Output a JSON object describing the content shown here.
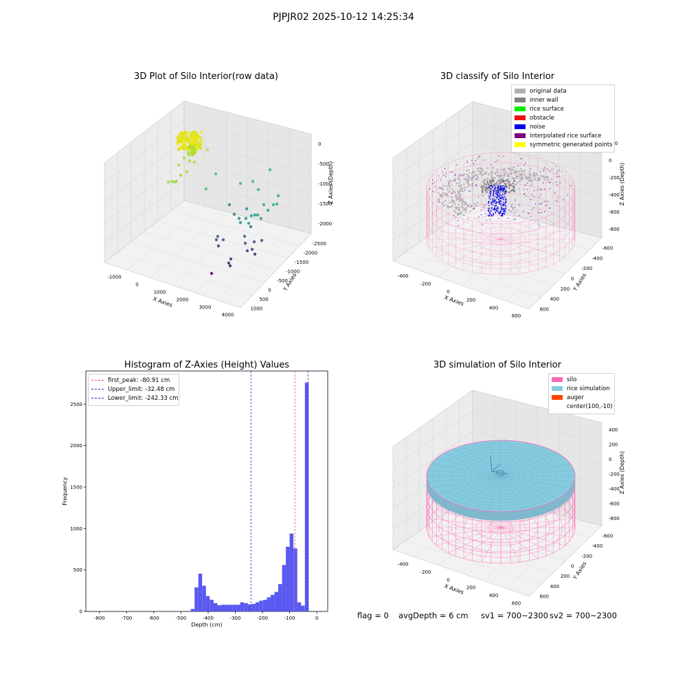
{
  "figure_title": "PJPJR02 2025-10-12 14:25:34",
  "colors": {
    "hist_bar": "#5050f0",
    "first_peak_line": "#e05060",
    "limit_line": "#2030c0",
    "silo_wire": "#ff69b4",
    "rice_sim": "#87cbe0",
    "auger": "#ff4500",
    "original": "#b0b0b0",
    "inner_wall": "#808080",
    "rice_surface": "#00ee00",
    "obstacle": "#ee1010",
    "noise": "#0000ee",
    "interp": "#800080",
    "sym": "#ffff00"
  },
  "chart_data": [
    {
      "type": "scatter",
      "title": "3D Plot of Silo Interior(row data)",
      "xlabel": "X Axies",
      "ylabel": "Y Axies",
      "zlabel": "Z Axies (Depth)",
      "x_ticks": [
        "-1000",
        "0",
        "1000",
        "2000",
        "3000",
        "4000"
      ],
      "y_ticks": [
        "1000",
        "500",
        "0",
        "-500",
        "-1000",
        "-1500",
        "-2000",
        "-2500"
      ],
      "z_ticks": [
        "0",
        "-500",
        "-1000",
        "-1500",
        "-2000"
      ]
    },
    {
      "type": "scatter",
      "title": "3D classify of Silo Interior",
      "xlabel": "X Axies",
      "ylabel": "Y Axies",
      "zlabel": "Z Axies (Depth)",
      "x_ticks": [
        "-400",
        "-200",
        "0",
        "200",
        "400",
        "600"
      ],
      "y_ticks": [
        "600",
        "400",
        "200",
        "0",
        "-200",
        "-400",
        "-600"
      ],
      "z_ticks": [
        "200",
        "0",
        "-200",
        "-400",
        "-600",
        "-800"
      ],
      "legend": [
        "original data",
        "inner wall",
        "rice surface",
        "obstacle",
        "noise",
        "interpolated rice surface",
        "symmetric generated points"
      ]
    },
    {
      "type": "bar",
      "title": "Histogram of Z-Axies (Height) Values",
      "xlabel": "Depth (cm)",
      "ylabel": "Frequency",
      "xlim": [
        -850,
        40
      ],
      "ylim": [
        0,
        2900
      ],
      "x_ticks": [
        -800,
        -700,
        -600,
        -500,
        -400,
        -300,
        -200,
        -100,
        0
      ],
      "y_ticks": [
        0,
        500,
        1000,
        1500,
        2000,
        2500
      ],
      "bin_width": 14,
      "bins": [
        {
          "x": -464,
          "y": 30
        },
        {
          "x": -450,
          "y": 290
        },
        {
          "x": -436,
          "y": 455
        },
        {
          "x": -422,
          "y": 310
        },
        {
          "x": -408,
          "y": 185
        },
        {
          "x": -394,
          "y": 140
        },
        {
          "x": -380,
          "y": 100
        },
        {
          "x": -366,
          "y": 75
        },
        {
          "x": -352,
          "y": 80
        },
        {
          "x": -338,
          "y": 80
        },
        {
          "x": -324,
          "y": 80
        },
        {
          "x": -310,
          "y": 80
        },
        {
          "x": -296,
          "y": 80
        },
        {
          "x": -282,
          "y": 110
        },
        {
          "x": -268,
          "y": 100
        },
        {
          "x": -254,
          "y": 85
        },
        {
          "x": -240,
          "y": 90
        },
        {
          "x": -226,
          "y": 110
        },
        {
          "x": -212,
          "y": 130
        },
        {
          "x": -198,
          "y": 140
        },
        {
          "x": -184,
          "y": 170
        },
        {
          "x": -170,
          "y": 200
        },
        {
          "x": -156,
          "y": 235
        },
        {
          "x": -142,
          "y": 330
        },
        {
          "x": -128,
          "y": 560
        },
        {
          "x": -114,
          "y": 780
        },
        {
          "x": -100,
          "y": 940
        },
        {
          "x": -86,
          "y": 760
        },
        {
          "x": -72,
          "y": 110
        },
        {
          "x": -58,
          "y": 70
        },
        {
          "x": -44,
          "y": 2760
        }
      ],
      "lines": [
        {
          "label": "first_peak: -80.91 cm",
          "x": -80.91
        },
        {
          "label": "Upper_limit: -32.48 cm",
          "x": -32.48
        },
        {
          "label": "Lower_limit: -242.33 cm",
          "x": -242.33
        }
      ]
    },
    {
      "type": "scatter",
      "title": "3D simulation of Silo Interior",
      "xlabel": "X Axies",
      "ylabel": "Y Axies",
      "zlabel": "Z Axies (Depth)",
      "x_ticks": [
        "-400",
        "-200",
        "0",
        "200",
        "400",
        "600"
      ],
      "y_ticks": [
        "600",
        "400",
        "200",
        "0",
        "-200",
        "-400",
        "-600"
      ],
      "z_ticks": [
        "400",
        "200",
        "0",
        "-200",
        "-400",
        "-600",
        "-800"
      ],
      "legend": [
        "silo",
        "rice simulation",
        "auger",
        "center(100,-10)"
      ]
    }
  ],
  "footer": {
    "flag": "flag = 0",
    "avg_depth": "avgDepth = 6 cm",
    "sv1": "sv1 = 700~2300",
    "sv2": "sv2 = 700~2300"
  }
}
